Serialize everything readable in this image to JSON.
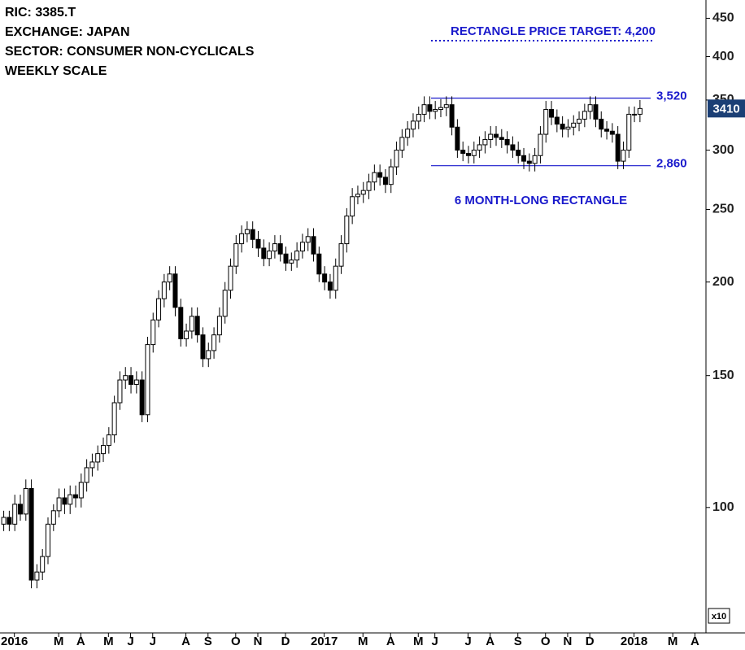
{
  "chart_data": {
    "type": "candlestick",
    "header": [
      "RIC: 3385.T",
      "EXCHANGE: JAPAN",
      "SECTOR: CONSUMER NON-CYCLICALS",
      "WEEKLY SCALE"
    ],
    "annotation": "6 MONTH-LONG RECTANGLE",
    "scale_note": "x10",
    "log_scale": true,
    "ylim": [
      68,
      476
    ],
    "yticks": [
      100,
      150,
      200,
      250,
      300,
      350,
      400,
      450
    ],
    "xlim": [
      -0.6,
      127
    ],
    "xticks": [
      {
        "value": 2,
        "label": "2016"
      },
      {
        "value": 10,
        "label": "M"
      },
      {
        "value": 14,
        "label": "A"
      },
      {
        "value": 19,
        "label": "M"
      },
      {
        "value": 23,
        "label": "J"
      },
      {
        "value": 27,
        "label": "J"
      },
      {
        "value": 33,
        "label": "A"
      },
      {
        "value": 37,
        "label": "S"
      },
      {
        "value": 42,
        "label": "O"
      },
      {
        "value": 46,
        "label": "N"
      },
      {
        "value": 51,
        "label": "D"
      },
      {
        "value": 58,
        "label": "2017"
      },
      {
        "value": 65,
        "label": "M"
      },
      {
        "value": 70,
        "label": "A"
      },
      {
        "value": 75,
        "label": "M"
      },
      {
        "value": 78,
        "label": "J"
      },
      {
        "value": 84,
        "label": "J"
      },
      {
        "value": 88,
        "label": "A"
      },
      {
        "value": 93,
        "label": "S"
      },
      {
        "value": 98,
        "label": "O"
      },
      {
        "value": 102,
        "label": "N"
      },
      {
        "value": 106,
        "label": "D"
      },
      {
        "value": 114,
        "label": "2018"
      },
      {
        "value": 121,
        "label": "M"
      },
      {
        "value": 125,
        "label": "A"
      }
    ],
    "levels": [
      {
        "value": 420,
        "label": "RECTANGLE PRICE TARGET: 4,200",
        "style": "dotted"
      },
      {
        "value": 352,
        "label": "3,520",
        "style": "solid"
      },
      {
        "value": 286,
        "label": "2,860",
        "style": "solid"
      }
    ],
    "last_price": {
      "value": 341,
      "label": "3410"
    },
    "open": [
      95,
      97,
      95,
      101,
      98,
      106,
      80,
      82,
      86,
      95,
      99,
      103,
      101,
      104,
      103,
      108,
      113,
      115,
      118,
      121,
      125,
      138,
      148,
      150,
      146,
      148,
      133,
      165,
      178,
      190,
      200,
      205,
      185,
      168,
      172,
      180,
      170,
      158,
      162,
      170,
      180,
      195,
      210,
      225,
      232,
      235,
      228,
      222,
      215,
      220,
      225,
      218,
      212,
      214,
      220,
      226,
      230,
      218,
      205,
      200,
      195,
      210,
      225,
      245,
      260,
      262,
      265,
      272,
      280,
      276,
      270,
      285,
      300,
      312,
      320,
      328,
      335,
      345,
      338,
      340,
      342,
      345,
      322,
      300,
      297,
      295,
      300,
      305,
      310,
      315,
      312,
      310,
      305,
      300,
      295,
      290,
      288,
      295,
      315,
      340,
      332,
      325,
      320,
      322,
      326,
      330,
      338,
      345,
      330,
      320,
      318,
      315,
      290,
      300,
      335,
      335
    ],
    "high": [
      99,
      99,
      104,
      104,
      109,
      109,
      84,
      88,
      97,
      101,
      106,
      106,
      107,
      107,
      111,
      116,
      118,
      121,
      124,
      128,
      141,
      152,
      154,
      154,
      152,
      152,
      169,
      182,
      195,
      205,
      210,
      210,
      190,
      176,
      185,
      185,
      174,
      166,
      174,
      185,
      200,
      215,
      231,
      238,
      241,
      241,
      234,
      228,
      226,
      231,
      231,
      223,
      219,
      226,
      232,
      236,
      236,
      223,
      210,
      205,
      215,
      231,
      251,
      267,
      269,
      272,
      279,
      287,
      287,
      283,
      292,
      308,
      320,
      328,
      336,
      343,
      354,
      354,
      349,
      351,
      354,
      354,
      330,
      308,
      304,
      308,
      313,
      318,
      323,
      323,
      320,
      318,
      313,
      308,
      302,
      297,
      302,
      323,
      349,
      349,
      340,
      333,
      330,
      334,
      338,
      346,
      354,
      354,
      338,
      328,
      326,
      323,
      308,
      343,
      343,
      350
    ],
    "low": [
      93,
      93,
      93,
      96,
      96,
      78,
      78,
      80,
      84,
      93,
      97,
      98,
      98,
      100,
      100,
      105,
      110,
      112,
      115,
      118,
      122,
      135,
      144,
      142,
      142,
      130,
      130,
      161,
      174,
      185,
      195,
      180,
      164,
      164,
      168,
      166,
      154,
      154,
      158,
      166,
      176,
      190,
      205,
      219,
      226,
      222,
      216,
      210,
      210,
      215,
      213,
      207,
      207,
      209,
      215,
      220,
      213,
      200,
      195,
      190,
      190,
      205,
      219,
      239,
      254,
      255,
      258,
      265,
      269,
      263,
      263,
      278,
      293,
      304,
      312,
      320,
      327,
      330,
      330,
      332,
      333,
      314,
      293,
      290,
      288,
      288,
      293,
      297,
      302,
      304,
      302,
      297,
      293,
      288,
      283,
      281,
      281,
      288,
      307,
      324,
      317,
      312,
      312,
      314,
      318,
      322,
      330,
      322,
      312,
      310,
      307,
      283,
      283,
      293,
      327,
      327
    ],
    "close": [
      97,
      95,
      101,
      98,
      106,
      80,
      82,
      86,
      95,
      99,
      103,
      101,
      104,
      103,
      108,
      113,
      115,
      118,
      121,
      125,
      138,
      148,
      150,
      146,
      148,
      133,
      165,
      178,
      190,
      200,
      205,
      185,
      168,
      172,
      180,
      170,
      158,
      162,
      170,
      180,
      195,
      210,
      225,
      232,
      235,
      228,
      222,
      215,
      220,
      225,
      218,
      212,
      214,
      220,
      226,
      230,
      218,
      205,
      200,
      195,
      210,
      225,
      245,
      260,
      262,
      265,
      272,
      280,
      276,
      270,
      285,
      300,
      312,
      320,
      328,
      335,
      345,
      338,
      340,
      342,
      345,
      322,
      300,
      297,
      295,
      300,
      305,
      310,
      315,
      312,
      310,
      305,
      300,
      295,
      290,
      288,
      295,
      315,
      340,
      332,
      325,
      320,
      322,
      326,
      330,
      338,
      345,
      330,
      320,
      318,
      315,
      290,
      300,
      335,
      335,
      341
    ]
  }
}
